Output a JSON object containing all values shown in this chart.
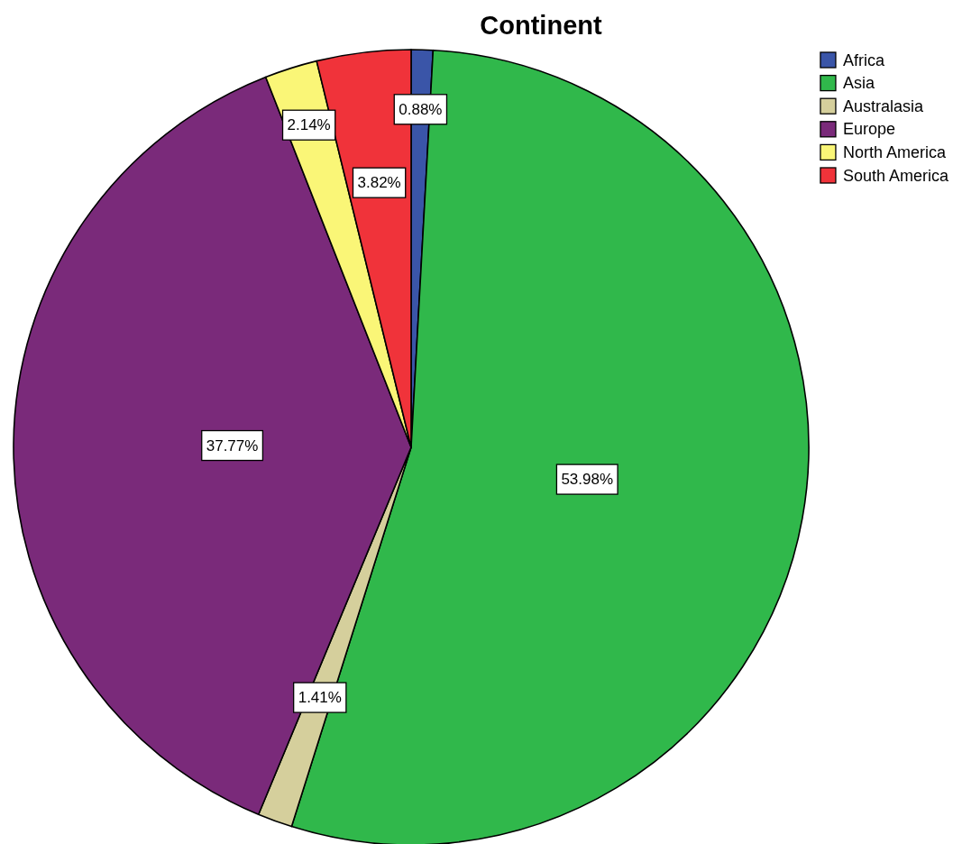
{
  "chart_data": {
    "type": "pie",
    "title": "Continent",
    "categories": [
      "Africa",
      "Asia",
      "Australasia",
      "Europe",
      "North America",
      "South America"
    ],
    "values": [
      0.88,
      53.98,
      1.41,
      37.77,
      2.14,
      3.82
    ],
    "colors": [
      "#3a55a8",
      "#30b84b",
      "#d5cf9c",
      "#7a2a7a",
      "#faf677",
      "#f0333a"
    ],
    "value_labels": [
      "0.88%",
      "53.98%",
      "1.41%",
      "37.77%",
      "2.14%",
      "3.82%"
    ],
    "legend": "top right"
  }
}
